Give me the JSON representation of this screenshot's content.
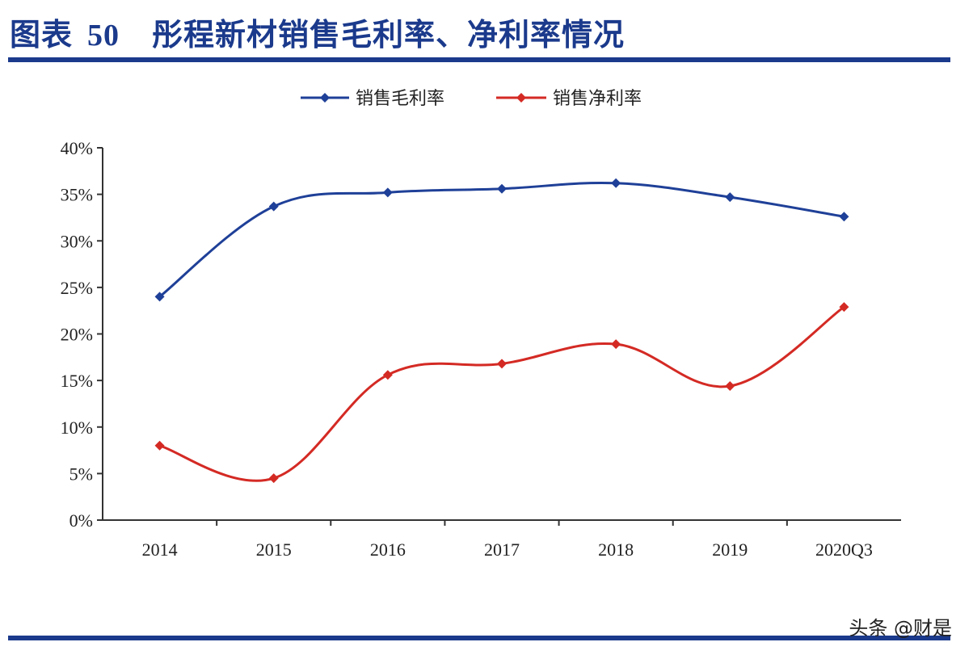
{
  "figure": {
    "label": "图表",
    "number": "50",
    "title": "彤程新材销售毛利率、净利率情况"
  },
  "watermark": "头条 @财是",
  "colors": {
    "accent": "#1b3a8c",
    "gross_margin": "#1f4098",
    "net_margin": "#d42a24"
  },
  "chart_data": {
    "type": "line",
    "title": "",
    "xlabel": "",
    "ylabel": "",
    "categories": [
      "2014",
      "2015",
      "2016",
      "2017",
      "2018",
      "2019",
      "2020Q3"
    ],
    "y_ticks": [
      "0%",
      "5%",
      "10%",
      "15%",
      "20%",
      "25%",
      "30%",
      "35%",
      "40%"
    ],
    "ylim": [
      0,
      40
    ],
    "grid": false,
    "legend": "top-center",
    "series": [
      {
        "name": "销售毛利率",
        "values": [
          24.0,
          33.7,
          35.2,
          35.6,
          36.2,
          34.7,
          32.6
        ]
      },
      {
        "name": "销售净利率",
        "values": [
          8.0,
          4.5,
          15.6,
          16.8,
          18.9,
          14.4,
          22.9
        ]
      }
    ]
  }
}
